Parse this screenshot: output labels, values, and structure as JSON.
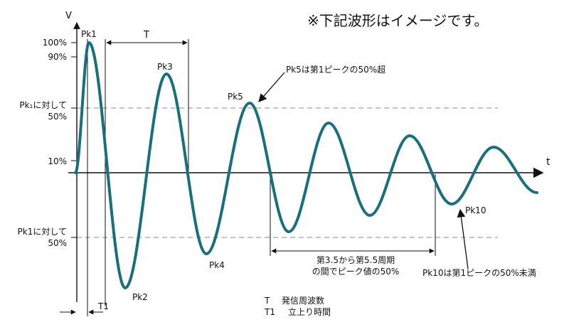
{
  "note": "※下記波形はイメージです。",
  "axis": {
    "y": "V",
    "x": "t"
  },
  "y_labels": {
    "p100": "100%",
    "p90": "90%",
    "rel50_upper_line1": "Pk₁に対して",
    "rel50_upper_line2": "50%",
    "p10": "10%",
    "rel50_lower_line1": "Pk1に対して",
    "rel50_lower_line2": "50%"
  },
  "peaks": {
    "pk1": "Pk1",
    "pk2": "Pk2",
    "pk3": "Pk3",
    "pk4": "Pk4",
    "pk5": "Pk5",
    "pk10": "Pk10"
  },
  "period_label": "T",
  "rise_label": "T1",
  "annotations": {
    "pk5_note": "Pk5は第1ピークの50%超",
    "range_note_line1": "第3.5から第5.5周期",
    "range_note_line2": "の間でピーク値の50%",
    "pk10_note": "Pk10は第1ピークの50%未満"
  },
  "legend": {
    "t_key": "T",
    "t_desc": "発信周波数",
    "t1_key": "T1",
    "t1_desc": "立上り時間"
  },
  "colors": {
    "wave": "#1a6f7e",
    "axis": "#111111",
    "dash": "#888888"
  }
}
